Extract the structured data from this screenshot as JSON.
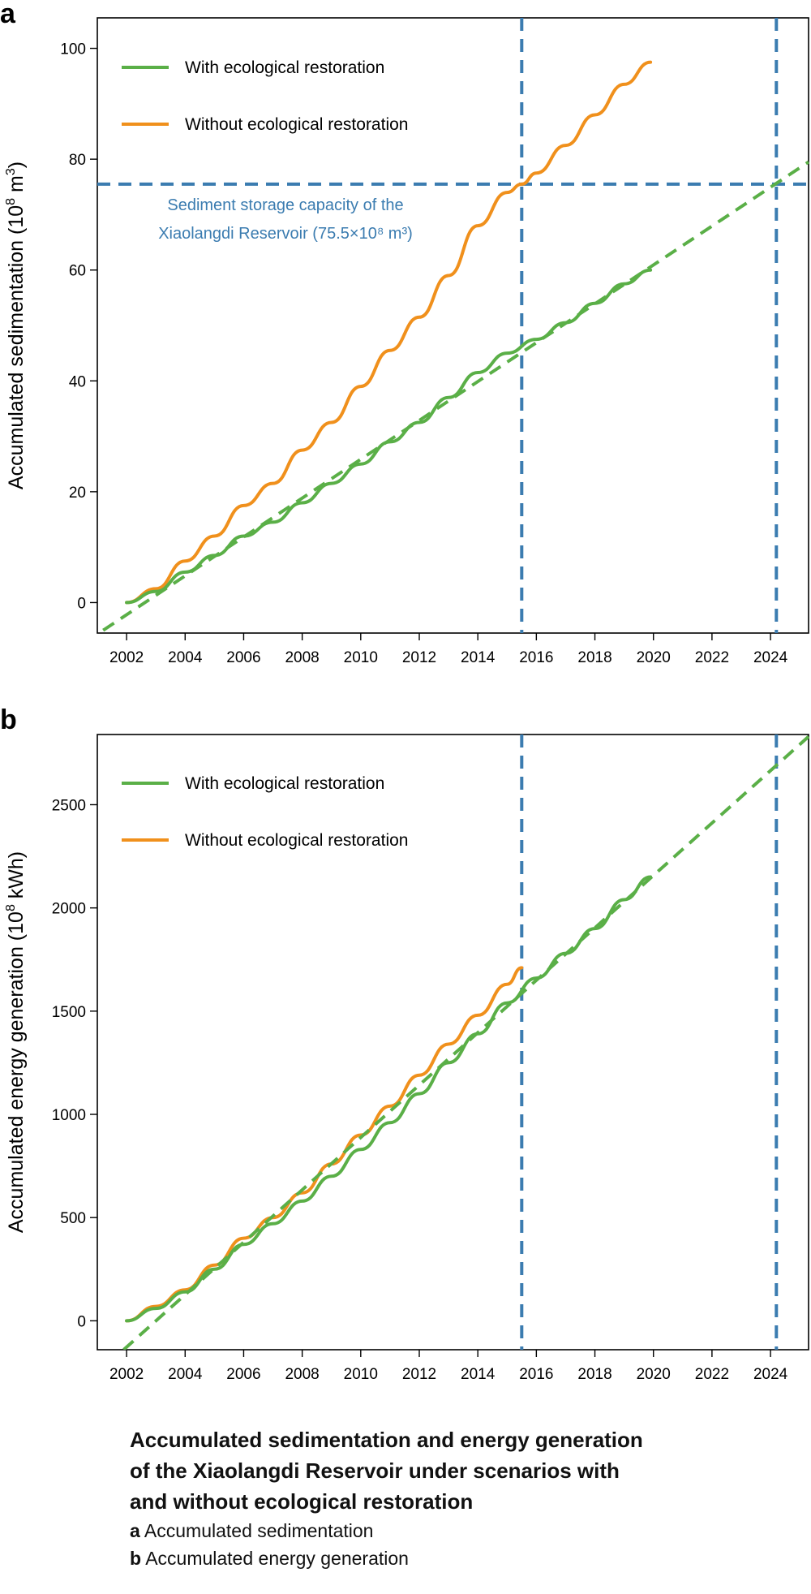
{
  "colors": {
    "with": "#5aaf47",
    "without": "#f0901c",
    "ref": "#3b7cb0"
  },
  "caption": {
    "title_lines": [
      "Accumulated sedimentation and energy generation",
      "of the Xiaolangdi Reservoir under scenarios with",
      "and without ecological restoration"
    ],
    "items": [
      {
        "letter": "a",
        "text": "Accumulated sedimentation"
      },
      {
        "letter": "b",
        "text": "Accumulated energy generation"
      }
    ]
  },
  "chart_data": [
    {
      "panel": "a",
      "type": "line",
      "ylabel_main": "Accumulated sedimentation (10",
      "ylabel_sup": "8",
      "ylabel_mid": " m",
      "ylabel_sup2": "3",
      "ylabel_end": ")",
      "xlim": [
        2001.0,
        2025.3
      ],
      "ylim": [
        -5.5,
        105.5
      ],
      "xticks": [
        2002,
        2004,
        2006,
        2008,
        2010,
        2012,
        2014,
        2016,
        2018,
        2020,
        2022,
        2024
      ],
      "yticks": [
        0,
        20,
        40,
        60,
        80,
        100
      ],
      "legend": [
        "With ecological restoration",
        "Without ecological restoration"
      ],
      "legend_position": "top-left",
      "annotation_line1": "Sediment storage capacity of the",
      "annotation_line2": "Xiaolangdi Reservoir (75.5×10⁸ m³)",
      "hline_y": 75.5,
      "vlines_x": [
        2015.5,
        2024.2
      ],
      "series": [
        {
          "name": "Without ecological restoration",
          "style": "solid",
          "x": [
            2002.0,
            2003.0,
            2004.0,
            2005.0,
            2006.0,
            2007.0,
            2008.0,
            2009.0,
            2010.0,
            2011.0,
            2012.0,
            2013.0,
            2014.0,
            2015.0,
            2015.5,
            2016.0,
            2017.0,
            2018.0,
            2019.0,
            2019.9
          ],
          "y": [
            0,
            2.5,
            7.5,
            12,
            17.5,
            21.5,
            27.5,
            32.5,
            39,
            45.5,
            51.5,
            59,
            68,
            74,
            75.5,
            77.5,
            82.5,
            88,
            93.5,
            97.5
          ]
        },
        {
          "name": "With ecological restoration",
          "style": "solid",
          "x": [
            2002.0,
            2003.0,
            2004.0,
            2005.0,
            2006.0,
            2007.0,
            2008.0,
            2009.0,
            2010.0,
            2011.0,
            2012.0,
            2013.0,
            2014.0,
            2015.0,
            2016.0,
            2017.0,
            2018.0,
            2019.0,
            2019.9
          ],
          "y": [
            0,
            2,
            5.5,
            8.5,
            12,
            14.5,
            18,
            21.5,
            25,
            29,
            32.5,
            37,
            41.5,
            45,
            47.5,
            50.5,
            54,
            57.5,
            60
          ]
        },
        {
          "name": "With ecological restoration (trend)",
          "style": "dashed",
          "x": [
            2001.2,
            2025.3
          ],
          "y": [
            -5,
            79.5
          ]
        }
      ]
    },
    {
      "panel": "b",
      "type": "line",
      "ylabel_main": "Accumulated energy generation (10",
      "ylabel_sup": "8",
      "ylabel_end": " kWh)",
      "xlim": [
        2001.0,
        2025.3
      ],
      "ylim": [
        -140,
        2840
      ],
      "xticks": [
        2002,
        2004,
        2006,
        2008,
        2010,
        2012,
        2014,
        2016,
        2018,
        2020,
        2022,
        2024
      ],
      "yticks": [
        0,
        500,
        1000,
        1500,
        2000,
        2500
      ],
      "legend": [
        "With ecological restoration",
        "Without ecological restoration"
      ],
      "legend_position": "top-left",
      "vlines_x": [
        2015.5,
        2024.2
      ],
      "series": [
        {
          "name": "Without ecological restoration",
          "style": "solid",
          "x": [
            2002.0,
            2003.0,
            2004.0,
            2005.0,
            2006.0,
            2007.0,
            2008.0,
            2009.0,
            2010.0,
            2011.0,
            2012.0,
            2013.0,
            2014.0,
            2015.0,
            2015.5
          ],
          "y": [
            0,
            70,
            150,
            270,
            400,
            500,
            620,
            760,
            900,
            1040,
            1190,
            1340,
            1480,
            1630,
            1710
          ]
        },
        {
          "name": "With ecological restoration",
          "style": "solid",
          "x": [
            2002.0,
            2003.0,
            2004.0,
            2005.0,
            2006.0,
            2007.0,
            2008.0,
            2009.0,
            2010.0,
            2011.0,
            2012.0,
            2013.0,
            2014.0,
            2015.0,
            2016.0,
            2017.0,
            2018.0,
            2019.0,
            2019.9
          ],
          "y": [
            0,
            60,
            140,
            250,
            370,
            470,
            580,
            700,
            830,
            960,
            1100,
            1250,
            1390,
            1540,
            1660,
            1780,
            1900,
            2040,
            2150
          ]
        },
        {
          "name": "With ecological restoration (trend)",
          "style": "dashed",
          "x": [
            2001.9,
            2025.3
          ],
          "y": [
            -140,
            2830
          ]
        }
      ]
    }
  ]
}
